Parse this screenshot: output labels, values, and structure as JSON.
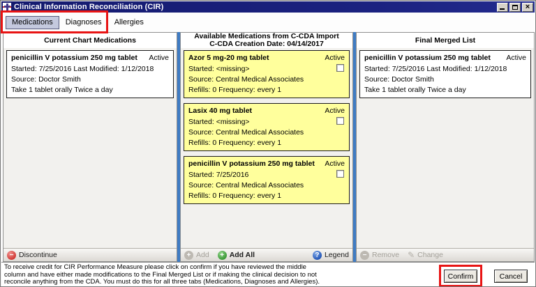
{
  "window": {
    "title": "Clinical Information Reconciliation (CIR)"
  },
  "tabs": {
    "medications": "Medications",
    "diagnoses": "Diagnoses",
    "allergies": "Allergies"
  },
  "left_column": {
    "header": "Current Chart Medications",
    "card": {
      "name": "penicillin V potassium 250 mg tablet",
      "status": "Active",
      "dates": "Started: 7/25/2016  Last Modified: 1/12/2018",
      "source": "Source: Doctor Smith",
      "sig": "Take 1 tablet orally Twice a day"
    },
    "toolbar": {
      "discontinue": "Discontinue"
    }
  },
  "middle_column": {
    "header_line1": "Available Medications from C-CDA Import",
    "header_line2": "C-CDA Creation Date: 04/14/2017",
    "cards": [
      {
        "name": "Azor 5 mg-20 mg tablet",
        "status": "Active",
        "started": "Started: <missing>",
        "source": "Source: Central Medical Associates",
        "refills": "Refills: 0 Frequency: every 1"
      },
      {
        "name": "Lasix 40 mg tablet",
        "status": "Active",
        "started": "Started: <missing>",
        "source": "Source: Central Medical Associates",
        "refills": "Refills: 0 Frequency: every 1"
      },
      {
        "name": "penicillin V potassium 250 mg tablet",
        "status": "Active",
        "started": "Started: 7/25/2016",
        "source": "Source: Central Medical Associates",
        "refills": "Refills: 0 Frequency: every 1"
      }
    ],
    "toolbar": {
      "add": "Add",
      "add_all": "Add All",
      "legend": "Legend"
    }
  },
  "right_column": {
    "header": "Final Merged List",
    "card": {
      "name": "penicillin V potassium 250 mg tablet",
      "status": "Active",
      "dates": "Started: 7/25/2016  Last Modified: 1/12/2018",
      "source": "Source: Doctor Smith",
      "sig": "Take 1 tablet orally Twice a day"
    },
    "toolbar": {
      "remove": "Remove",
      "change": "Change"
    }
  },
  "footer": {
    "disclaimer_line1": "To receive credit for CIR Performance Measure please click on confirm if you have reviewed the middle",
    "disclaimer_line2": "column and have either made modifications to the Final Merged List or if making the clinical decision to not",
    "disclaimer_line3": "reconcile anything from the CDA. You must do this for all three tabs (Medications, Diagnoses and Allergies).",
    "confirm": "Confirm",
    "cancel": "Cancel"
  },
  "icons": {
    "discontinue_glyph": "−",
    "add_glyph": "+",
    "add_all_glyph": "+",
    "legend_glyph": "?",
    "remove_glyph": "−",
    "change_glyph": "✎",
    "close_glyph": "×"
  },
  "colors": {
    "titlebar_navy": "#1b2280",
    "card_yellow": "#ffff9c",
    "column_divider_blue": "#3f7cc4",
    "annotation_red": "#e81414",
    "add_all_green": "#3c9a38",
    "discontinue_red": "#d23a36",
    "legend_blue": "#2457b7",
    "selected_tab_bg": "#c4c9de"
  }
}
